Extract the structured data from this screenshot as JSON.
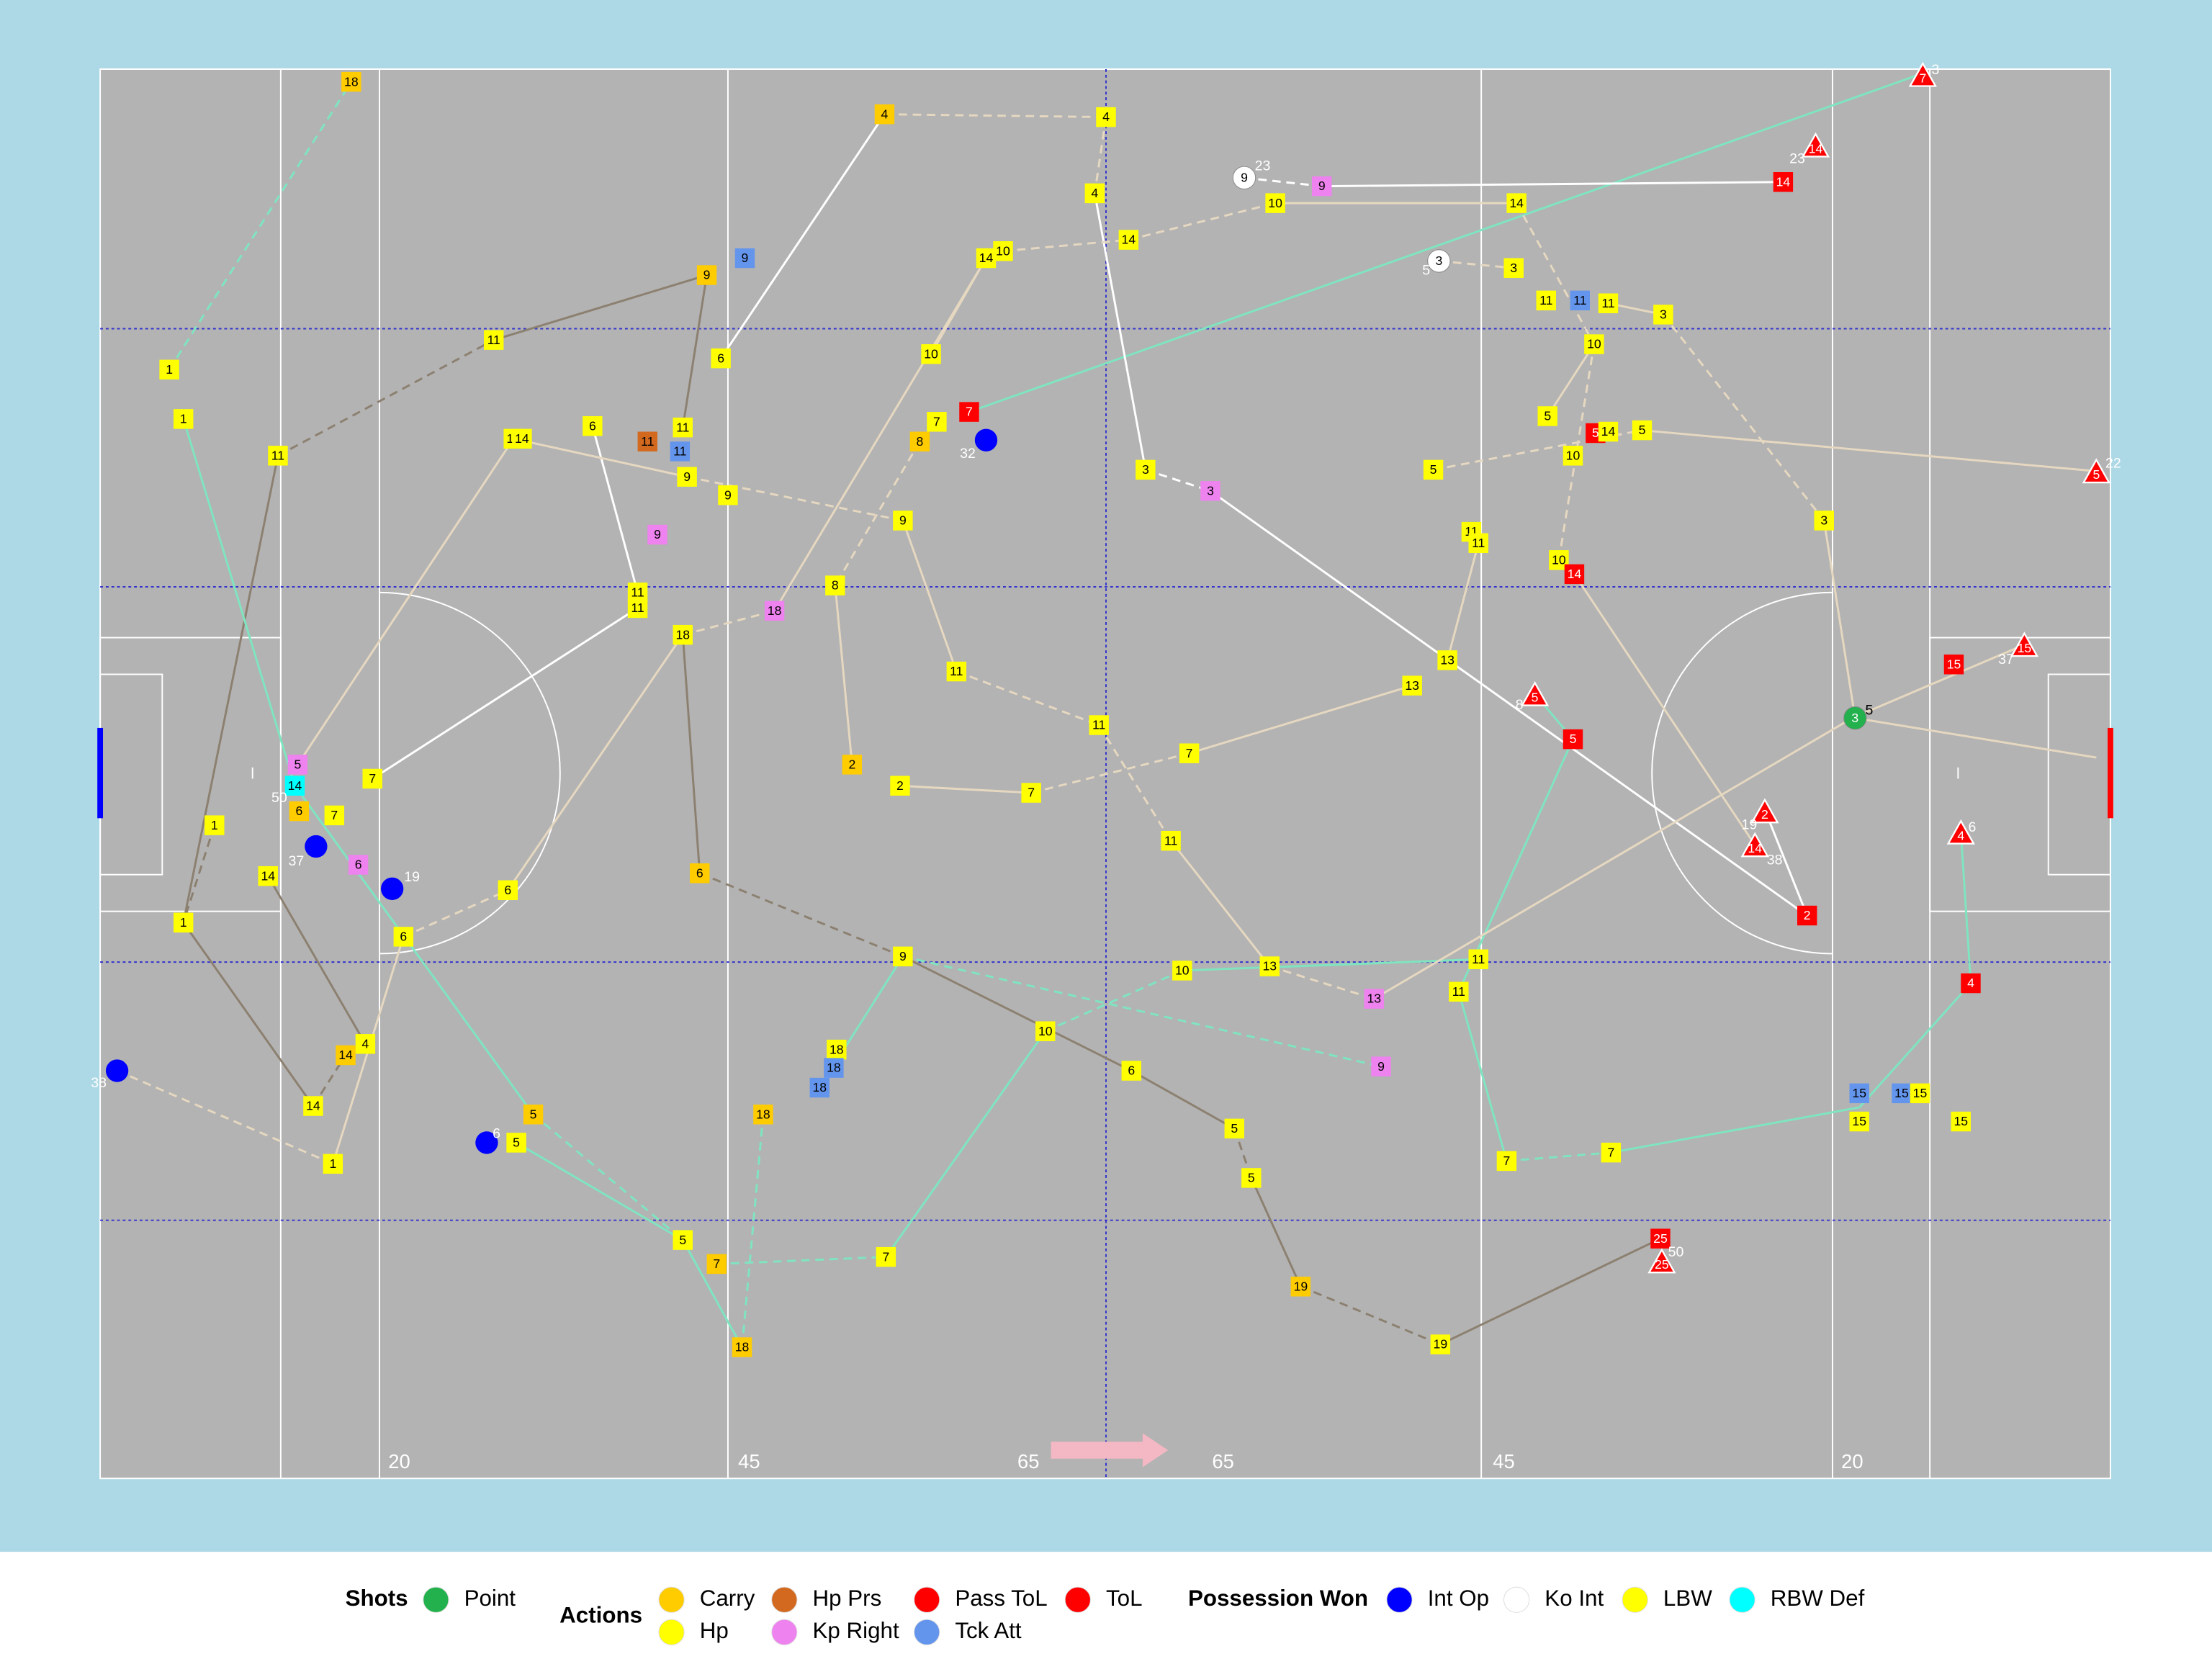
{
  "pitch": {
    "distances": [
      "20",
      "45",
      "65",
      "65",
      "45",
      "20"
    ]
  },
  "markers": [
    "18",
    "1",
    "1",
    "11",
    "11",
    "9",
    "9",
    "6",
    "4",
    "4",
    "4",
    "14",
    "10",
    "14",
    "10",
    "7",
    "7",
    "8",
    "10",
    "14",
    "9",
    "14",
    "3",
    "11",
    "11",
    "11",
    "3",
    "10",
    "5",
    "5",
    "14",
    "5",
    "10",
    "5",
    "11",
    "11",
    "10",
    "14",
    "3",
    "3",
    "14",
    "14",
    "6",
    "11",
    "11",
    "11",
    "9",
    "9",
    "9",
    "9",
    "11",
    "11",
    "18",
    "18",
    "8",
    "11",
    "11",
    "7",
    "13",
    "13",
    "3",
    "5",
    "2",
    "2",
    "7",
    "5",
    "14",
    "6",
    "7",
    "7",
    "1",
    "6",
    "14",
    "11",
    "6",
    "6",
    "1",
    "6",
    "9",
    "10",
    "13",
    "11",
    "13",
    "11",
    "2",
    "4",
    "14",
    "10",
    "18",
    "18",
    "18",
    "9",
    "6",
    "14",
    "5",
    "5",
    "18",
    "5",
    "5",
    "7",
    "7",
    "15",
    "15",
    "15",
    "15",
    "15",
    "4",
    "15",
    "1",
    "5",
    "7",
    "7",
    "18",
    "19",
    "19",
    "25",
    "7",
    "14",
    "5",
    "15",
    "5",
    "2",
    "14",
    "4",
    "25",
    "9",
    "3",
    "3"
  ],
  "notes": [
    "3",
    "23",
    "22",
    "37",
    "8",
    "19",
    "38",
    "6",
    "50",
    "23",
    "5",
    "5",
    "32",
    "37",
    "19",
    "38",
    "6",
    "50"
  ],
  "legend": {
    "groups": [
      {
        "title": "Shots",
        "items": [
          "Point"
        ]
      },
      {
        "title": "Actions",
        "items": [
          "Carry",
          "Hp",
          "Hp Prs",
          "Kp Right",
          "Pass ToL",
          "Tck Att",
          "ToL"
        ]
      },
      {
        "title": "Possession Won",
        "items": [
          "Int Op",
          "Ko Int",
          "LBW",
          "RBW Def"
        ]
      }
    ]
  }
}
